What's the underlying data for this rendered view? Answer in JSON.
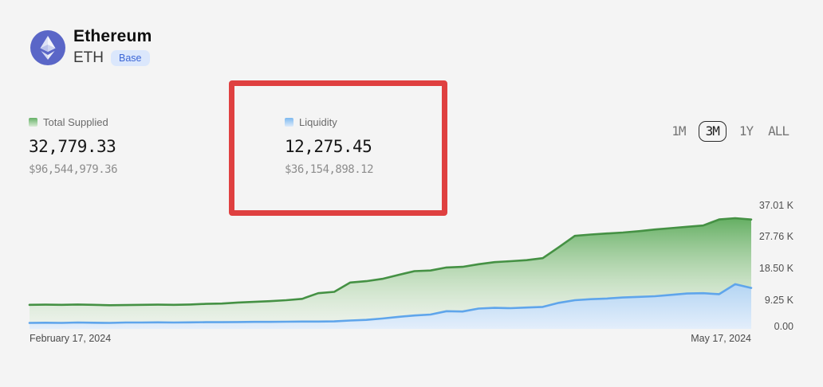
{
  "header": {
    "title": "Ethereum",
    "symbol": "ETH",
    "network_badge": "Base"
  },
  "stats": [
    {
      "label": "Total Supplied",
      "value": "32,779.33",
      "usd_value": "$96,544,979.36",
      "swatch_color_top": "#65b066",
      "swatch_color_bottom": "#d9ecd5"
    },
    {
      "label": "Liquidity",
      "value": "12,275.45",
      "usd_value": "$36,154,898.12",
      "swatch_color_top": "#7db9ef",
      "swatch_color_bottom": "#ddebfa"
    }
  ],
  "time_range": {
    "options": [
      "1M",
      "3M",
      "1Y",
      "ALL"
    ],
    "selected": "3M"
  },
  "annotation": {
    "type": "highlight-box",
    "target": "Liquidity stat",
    "color": "#df4040"
  },
  "chart_data": {
    "type": "area",
    "grid": false,
    "legend_position": "above-chart-as-stat-labels",
    "x_start_label": "February 17, 2024",
    "x_end_label": "May 17, 2024",
    "x_range_days": 90,
    "y_ticks": [
      "37.01 K",
      "27.76 K",
      "18.50 K",
      "9.25 K",
      "0.00"
    ],
    "ylim": [
      0,
      37010
    ],
    "days": [
      0,
      2,
      4,
      6,
      8,
      10,
      12,
      14,
      16,
      18,
      20,
      22,
      24,
      26,
      28,
      30,
      32,
      34,
      36,
      38,
      40,
      42,
      44,
      46,
      48,
      50,
      52,
      54,
      56,
      58,
      60,
      62,
      64,
      66,
      68,
      70,
      72,
      74,
      76,
      78,
      80,
      82,
      84,
      86,
      88,
      90
    ],
    "series": [
      {
        "name": "Total Supplied",
        "color": "#459144",
        "values_k": [
          7.2,
          7.25,
          7.2,
          7.3,
          7.2,
          7.1,
          7.15,
          7.2,
          7.25,
          7.2,
          7.3,
          7.5,
          7.6,
          7.9,
          8.1,
          8.3,
          8.6,
          9.0,
          10.7,
          11.1,
          13.9,
          14.3,
          15.0,
          16.2,
          17.3,
          17.5,
          18.4,
          18.6,
          19.4,
          20.0,
          20.3,
          20.6,
          21.2,
          24.5,
          27.9,
          28.3,
          28.6,
          28.9,
          29.3,
          29.8,
          30.2,
          30.6,
          31.0,
          32.8,
          33.2,
          32.78
        ]
      },
      {
        "name": "Liquidity",
        "color": "#5fa5eb",
        "values_k": [
          1.8,
          1.85,
          1.8,
          1.9,
          1.85,
          1.8,
          1.9,
          1.9,
          1.95,
          1.9,
          1.95,
          2.0,
          2.0,
          2.05,
          2.1,
          2.1,
          2.15,
          2.2,
          2.2,
          2.25,
          2.5,
          2.7,
          3.1,
          3.6,
          4.0,
          4.3,
          5.3,
          5.2,
          6.1,
          6.3,
          6.2,
          6.4,
          6.6,
          7.8,
          8.6,
          8.9,
          9.1,
          9.4,
          9.6,
          9.8,
          10.2,
          10.6,
          10.7,
          10.4,
          13.4,
          12.28
        ]
      }
    ]
  }
}
